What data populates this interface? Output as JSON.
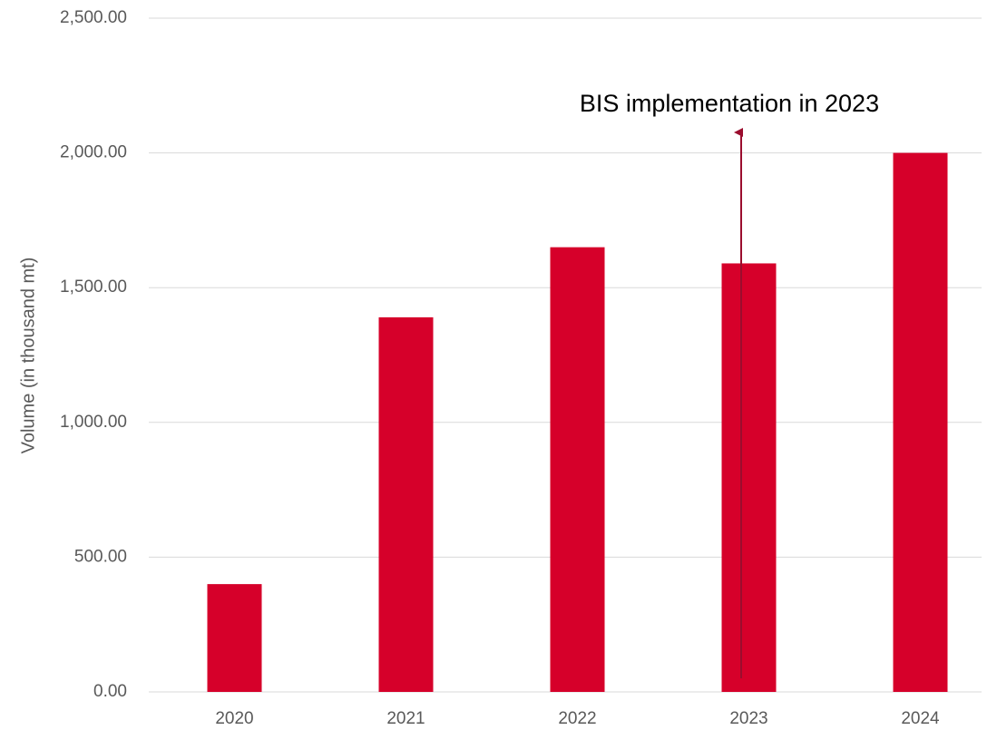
{
  "chart_data": {
    "type": "bar",
    "ylabel": "Volume (in thousand mt)",
    "annotation": "BIS implementation in 2023",
    "categories": [
      "2020",
      "2021",
      "2022",
      "2023",
      "2024"
    ],
    "values": [
      400,
      1390,
      1650,
      1590,
      2000
    ],
    "color": "#d6002a",
    "ylim": [
      0,
      2500
    ],
    "yticks": [
      {
        "value": 0,
        "label": "0.00"
      },
      {
        "value": 500,
        "label": "500.00"
      },
      {
        "value": 1000,
        "label": "1,000.00"
      },
      {
        "value": 1500,
        "label": "1,500.00"
      },
      {
        "value": 2000,
        "label": "2,000.00"
      },
      {
        "value": 2500,
        "label": "2,500.00"
      }
    ],
    "grid": true
  }
}
